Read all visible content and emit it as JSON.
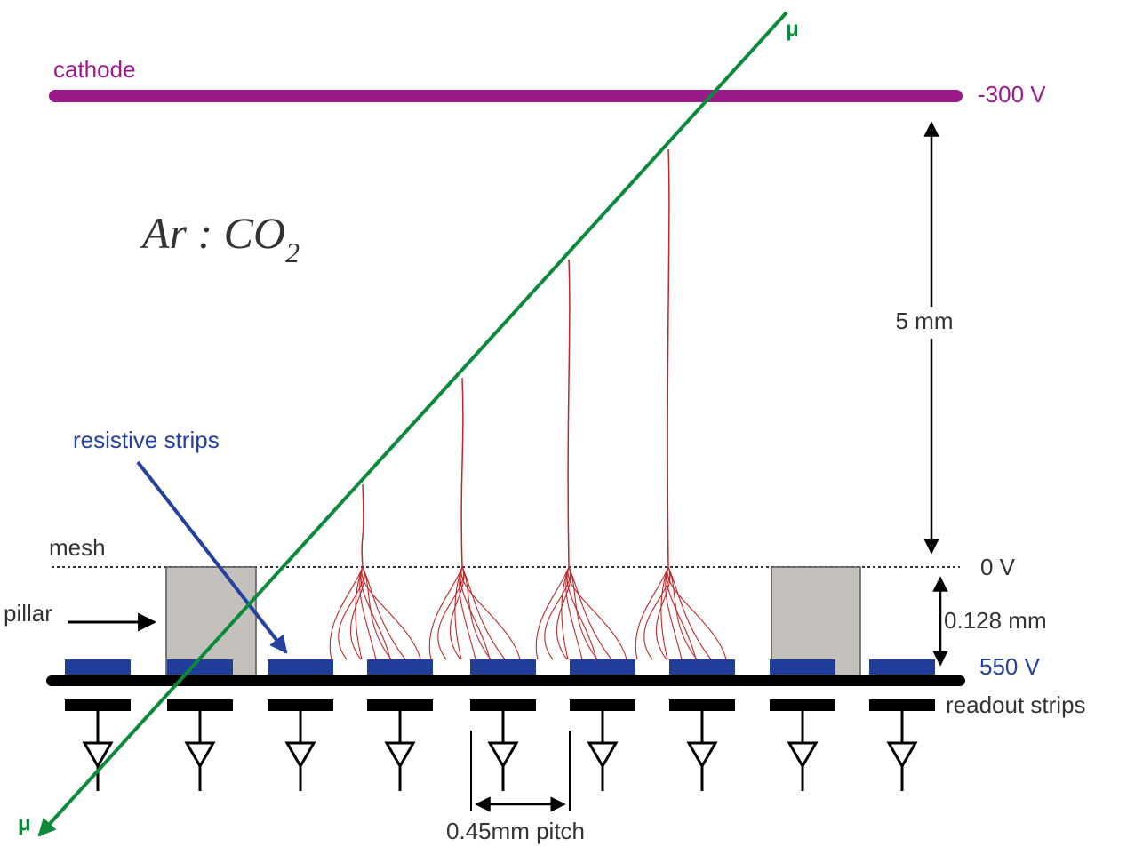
{
  "labels": {
    "cathode": "cathode",
    "cathode_voltage": "-300 V",
    "muon_top": "μ",
    "muon_bottom": "μ",
    "gas": {
      "main": "Ar : CO",
      "subscript": "2"
    },
    "drift_gap": "5 mm",
    "resistive_strips": "resistive strips",
    "mesh": "mesh",
    "pillar": "pillar",
    "mesh_voltage": "0 V",
    "amplification_gap": "0.128 mm",
    "strip_voltage": "550 V",
    "readout_strips": "readout strips",
    "pitch": "0.45mm pitch"
  }
}
